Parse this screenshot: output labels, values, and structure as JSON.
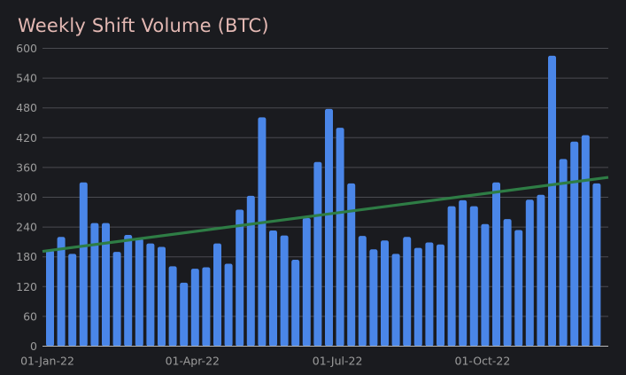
{
  "chart_data": {
    "type": "bar",
    "title": "Weekly Shift Volume (BTC)",
    "xlabel": "",
    "ylabel": "",
    "ylim": [
      0,
      600
    ],
    "yticks": [
      0,
      60,
      120,
      180,
      240,
      300,
      360,
      420,
      480,
      540,
      600
    ],
    "xtick_labels": [
      {
        "label": "01-Jan-22",
        "index": 0
      },
      {
        "label": "01-Apr-22",
        "index": 13
      },
      {
        "label": "01-Jul-22",
        "index": 26
      },
      {
        "label": "01-Oct-22",
        "index": 39
      }
    ],
    "grid": true,
    "series": [
      {
        "name": "Weekly Shift Volume",
        "color": "#4a86e8",
        "values": [
          193,
          220,
          186,
          330,
          248,
          248,
          190,
          224,
          216,
          207,
          200,
          161,
          128,
          156,
          159,
          207,
          166,
          275,
          303,
          461,
          233,
          223,
          174,
          258,
          371,
          478,
          440,
          328,
          222,
          195,
          213,
          186,
          220,
          198,
          209,
          205,
          282,
          294,
          282,
          246,
          330,
          256,
          234,
          295,
          305,
          585,
          377,
          412,
          425,
          328
        ]
      }
    ],
    "trendline": {
      "name": "Trend",
      "color": "#2e7d45",
      "start": 191,
      "end": 340
    }
  }
}
